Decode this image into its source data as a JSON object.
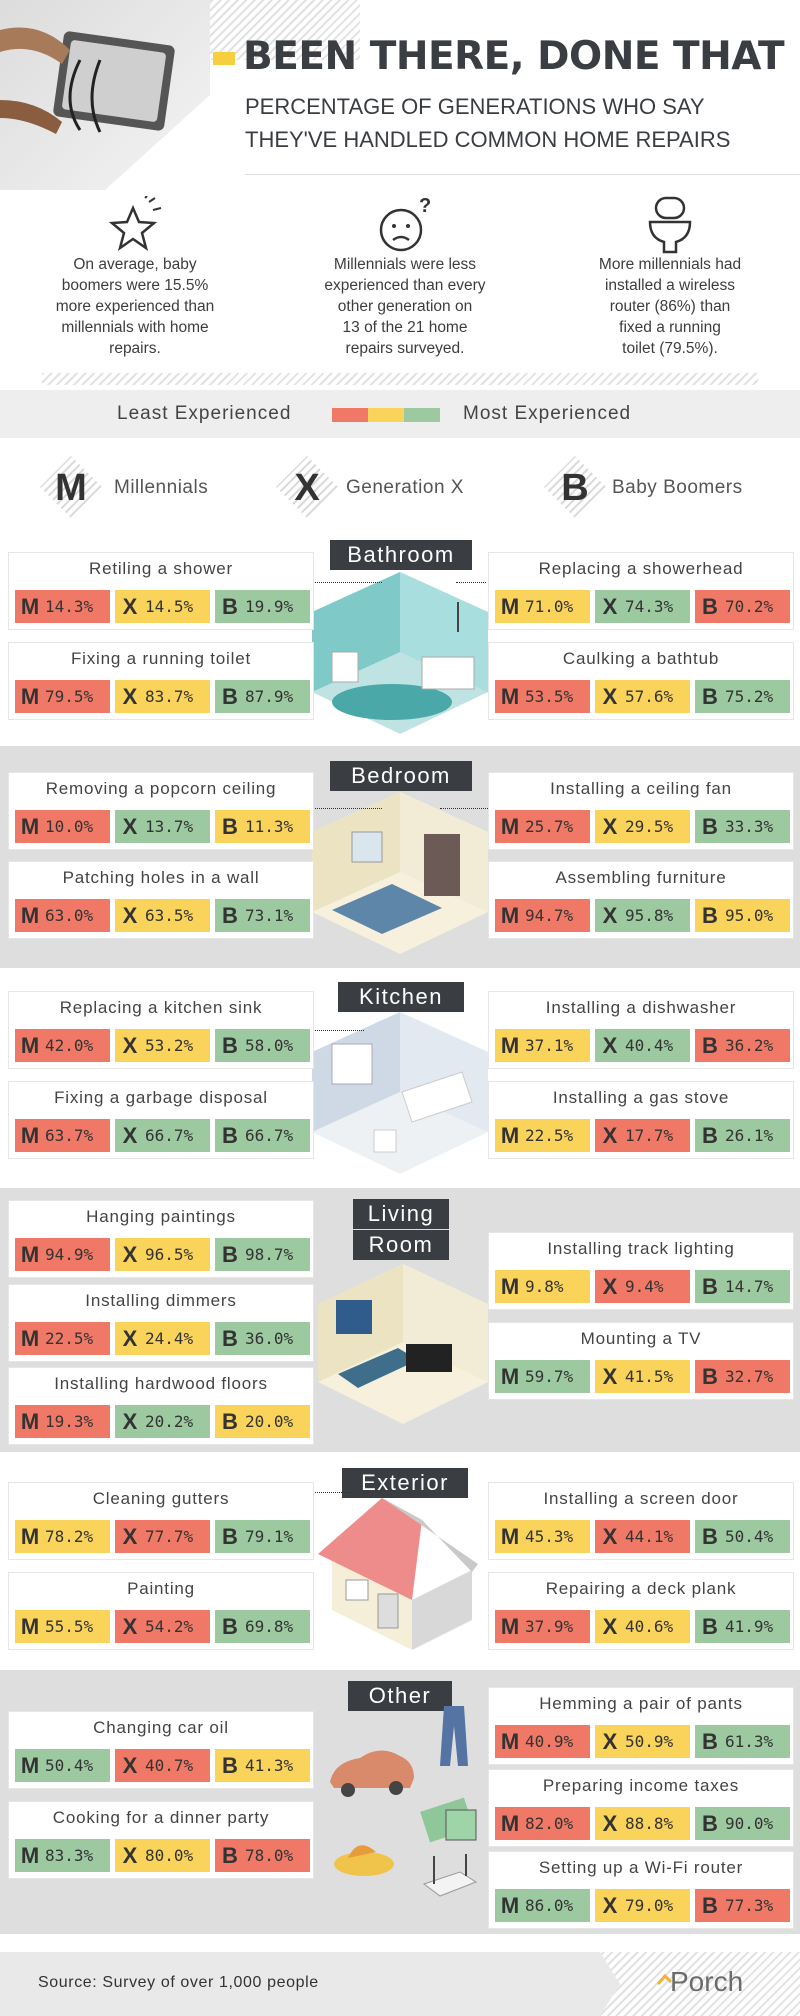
{
  "header": {
    "title": "BEEN THERE, DONE THAT",
    "subtitle_line1": "PERCENTAGE OF GENERATIONS WHO SAY",
    "subtitle_line2": "THEY'VE HANDLED COMMON HOME REPAIRS"
  },
  "facts": [
    {
      "icon": "star-icon",
      "lines": [
        "On average, baby",
        "boomers were 15.5%",
        "more experienced than",
        "millennials with home",
        "repairs."
      ]
    },
    {
      "icon": "confused-face-icon",
      "lines": [
        "Millennials were less",
        "experienced than every",
        "other generation on",
        "13 of the 21 home",
        "repairs surveyed."
      ]
    },
    {
      "icon": "toilet-icon",
      "lines": [
        "More millennials had",
        "installed a wireless",
        "router (86%) than",
        "fixed a running",
        "toilet (79.5%)."
      ]
    }
  ],
  "legend": {
    "least": "Least Experienced",
    "most": "Most Experienced",
    "colors": [
      "#f07866",
      "#f9d35a",
      "#9cc9a0"
    ]
  },
  "generations": [
    {
      "letter": "M",
      "label": "Millennials"
    },
    {
      "letter": "X",
      "label": "Generation X"
    },
    {
      "letter": "B",
      "label": "Baby Boomers"
    }
  ],
  "rooms": {
    "bathroom": "Bathroom",
    "bedroom": "Bedroom",
    "kitchen": "Kitchen",
    "living_1": "Living",
    "living_2": "Room",
    "exterior": "Exterior",
    "other": "Other"
  },
  "cards": [
    {
      "title": "Retiling a shower",
      "vals": [
        [
          "M",
          "14.3%",
          "r"
        ],
        [
          "X",
          "14.5%",
          "y"
        ],
        [
          "B",
          "19.9%",
          "g"
        ]
      ]
    },
    {
      "title": "Fixing a running toilet",
      "vals": [
        [
          "M",
          "79.5%",
          "r"
        ],
        [
          "X",
          "83.7%",
          "y"
        ],
        [
          "B",
          "87.9%",
          "g"
        ]
      ]
    },
    {
      "title": "Replacing a showerhead",
      "vals": [
        [
          "M",
          "71.0%",
          "y"
        ],
        [
          "X",
          "74.3%",
          "g"
        ],
        [
          "B",
          "70.2%",
          "r"
        ]
      ]
    },
    {
      "title": "Caulking a bathtub",
      "vals": [
        [
          "M",
          "53.5%",
          "r"
        ],
        [
          "X",
          "57.6%",
          "y"
        ],
        [
          "B",
          "75.2%",
          "g"
        ]
      ]
    },
    {
      "title": "Removing a popcorn ceiling",
      "vals": [
        [
          "M",
          "10.0%",
          "r"
        ],
        [
          "X",
          "13.7%",
          "g"
        ],
        [
          "B",
          "11.3%",
          "y"
        ]
      ]
    },
    {
      "title": "Patching holes in a wall",
      "vals": [
        [
          "M",
          "63.0%",
          "r"
        ],
        [
          "X",
          "63.5%",
          "y"
        ],
        [
          "B",
          "73.1%",
          "g"
        ]
      ]
    },
    {
      "title": "Installing a ceiling fan",
      "vals": [
        [
          "M",
          "25.7%",
          "r"
        ],
        [
          "X",
          "29.5%",
          "y"
        ],
        [
          "B",
          "33.3%",
          "g"
        ]
      ]
    },
    {
      "title": "Assembling furniture",
      "vals": [
        [
          "M",
          "94.7%",
          "r"
        ],
        [
          "X",
          "95.8%",
          "g"
        ],
        [
          "B",
          "95.0%",
          "y"
        ]
      ]
    },
    {
      "title": "Replacing a kitchen sink",
      "vals": [
        [
          "M",
          "42.0%",
          "r"
        ],
        [
          "X",
          "53.2%",
          "y"
        ],
        [
          "B",
          "58.0%",
          "g"
        ]
      ]
    },
    {
      "title": "Fixing a garbage disposal",
      "vals": [
        [
          "M",
          "63.7%",
          "r"
        ],
        [
          "X",
          "66.7%",
          "g"
        ],
        [
          "B",
          "66.7%",
          "g"
        ]
      ]
    },
    {
      "title": "Installing a dishwasher",
      "vals": [
        [
          "M",
          "37.1%",
          "y"
        ],
        [
          "X",
          "40.4%",
          "g"
        ],
        [
          "B",
          "36.2%",
          "r"
        ]
      ]
    },
    {
      "title": "Installing a gas stove",
      "vals": [
        [
          "M",
          "22.5%",
          "y"
        ],
        [
          "X",
          "17.7%",
          "r"
        ],
        [
          "B",
          "26.1%",
          "g"
        ]
      ]
    },
    {
      "title": "Hanging paintings",
      "vals": [
        [
          "M",
          "94.9%",
          "r"
        ],
        [
          "X",
          "96.5%",
          "y"
        ],
        [
          "B",
          "98.7%",
          "g"
        ]
      ]
    },
    {
      "title": "Installing dimmers",
      "vals": [
        [
          "M",
          "22.5%",
          "r"
        ],
        [
          "X",
          "24.4%",
          "y"
        ],
        [
          "B",
          "36.0%",
          "g"
        ]
      ]
    },
    {
      "title": "Installing hardwood floors",
      "vals": [
        [
          "M",
          "19.3%",
          "r"
        ],
        [
          "X",
          "20.2%",
          "g"
        ],
        [
          "B",
          "20.0%",
          "y"
        ]
      ]
    },
    {
      "title": "Installing track lighting",
      "vals": [
        [
          "M",
          "9.8%",
          "y"
        ],
        [
          "X",
          "9.4%",
          "r"
        ],
        [
          "B",
          "14.7%",
          "g"
        ]
      ]
    },
    {
      "title": "Mounting a TV",
      "vals": [
        [
          "M",
          "59.7%",
          "g"
        ],
        [
          "X",
          "41.5%",
          "y"
        ],
        [
          "B",
          "32.7%",
          "r"
        ]
      ]
    },
    {
      "title": "Cleaning gutters",
      "vals": [
        [
          "M",
          "78.2%",
          "y"
        ],
        [
          "X",
          "77.7%",
          "r"
        ],
        [
          "B",
          "79.1%",
          "g"
        ]
      ]
    },
    {
      "title": "Painting",
      "vals": [
        [
          "M",
          "55.5%",
          "y"
        ],
        [
          "X",
          "54.2%",
          "r"
        ],
        [
          "B",
          "69.8%",
          "g"
        ]
      ]
    },
    {
      "title": "Installing a screen door",
      "vals": [
        [
          "M",
          "45.3%",
          "y"
        ],
        [
          "X",
          "44.1%",
          "r"
        ],
        [
          "B",
          "50.4%",
          "g"
        ]
      ]
    },
    {
      "title": "Repairing a deck plank",
      "vals": [
        [
          "M",
          "37.9%",
          "r"
        ],
        [
          "X",
          "40.6%",
          "y"
        ],
        [
          "B",
          "41.9%",
          "g"
        ]
      ]
    },
    {
      "title": "Changing car oil",
      "vals": [
        [
          "M",
          "50.4%",
          "g"
        ],
        [
          "X",
          "40.7%",
          "r"
        ],
        [
          "B",
          "41.3%",
          "y"
        ]
      ]
    },
    {
      "title": "Cooking for a dinner party",
      "vals": [
        [
          "M",
          "83.3%",
          "g"
        ],
        [
          "X",
          "80.0%",
          "y"
        ],
        [
          "B",
          "78.0%",
          "r"
        ]
      ]
    },
    {
      "title": "Hemming a pair of pants",
      "vals": [
        [
          "M",
          "40.9%",
          "r"
        ],
        [
          "X",
          "50.9%",
          "y"
        ],
        [
          "B",
          "61.3%",
          "g"
        ]
      ]
    },
    {
      "title": "Preparing income taxes",
      "vals": [
        [
          "M",
          "82.0%",
          "r"
        ],
        [
          "X",
          "88.8%",
          "y"
        ],
        [
          "B",
          "90.0%",
          "g"
        ]
      ]
    },
    {
      "title": "Setting up a Wi-Fi router",
      "vals": [
        [
          "M",
          "86.0%",
          "g"
        ],
        [
          "X",
          "79.0%",
          "y"
        ],
        [
          "B",
          "77.3%",
          "r"
        ]
      ]
    }
  ],
  "footer": {
    "source": "Source: Survey of over 1,000 people",
    "brand": "Porch"
  }
}
